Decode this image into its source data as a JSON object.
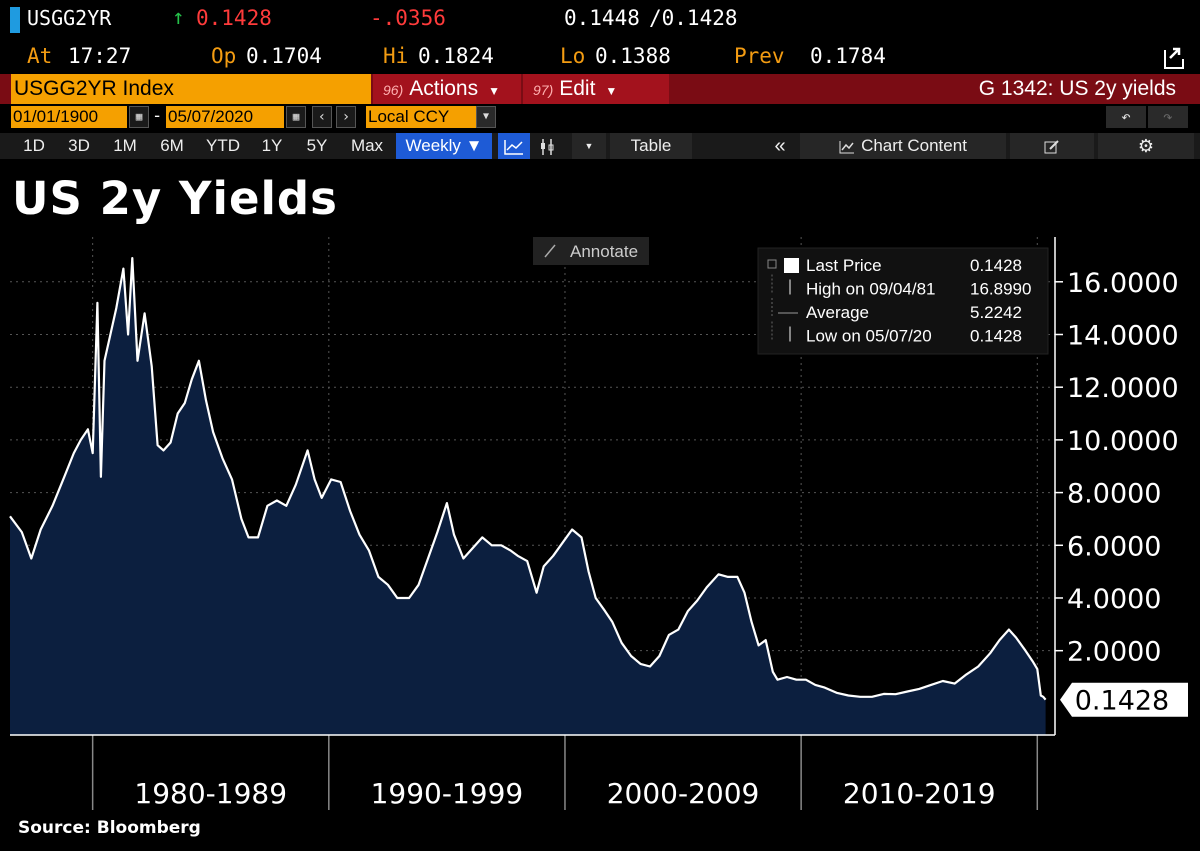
{
  "quote": {
    "ticker": "USGG2YR",
    "last": "0.1428",
    "change": "-.0356",
    "bid_ask_bid": "0.1448",
    "bid_ask_ask": "/0.1428",
    "at_label": "At",
    "at_time": "17:27",
    "op_label": "Op",
    "op_value": "0.1704",
    "hi_label": "Hi",
    "hi_value": "0.1824",
    "lo_label": "Lo",
    "lo_value": "0.1388",
    "prev_label": "Prev",
    "prev_value": "0.1784",
    "colors": {
      "up": "#25c24a",
      "last": "#ff3b3b",
      "label": "#f39c12"
    }
  },
  "tabs": {
    "security": "USGG2YR Index",
    "actions_num": "96)",
    "actions": "Actions",
    "edit_num": "97)",
    "edit": "Edit",
    "graph_title": "G 1342: US 2y yields"
  },
  "dates": {
    "start": "01/01/1900",
    "end": "05/07/2020",
    "currency": "Local CCY",
    "separator": "-"
  },
  "toolbar": {
    "periods": [
      "1D",
      "3D",
      "1M",
      "6M",
      "YTD",
      "1Y",
      "5Y",
      "Max"
    ],
    "frequency": "Weekly",
    "table": "Table",
    "chart_content": "Chart Content"
  },
  "annotate": "Annotate",
  "source": "Source: Bloomberg",
  "chart_data": {
    "type": "area",
    "title": "US 2y Yields",
    "xlabel": "",
    "ylabel": "",
    "x_range": [
      1976.5,
      2020.75
    ],
    "ylim": [
      -1.2,
      17.7
    ],
    "y_ticks": [
      "2.0000",
      "4.0000",
      "6.0000",
      "8.0000",
      "10.0000",
      "12.0000",
      "14.0000",
      "16.0000"
    ],
    "y_tick_values": [
      2,
      4,
      6,
      8,
      10,
      12,
      14,
      16
    ],
    "x_ticks": [
      "1980-1989",
      "1990-1999",
      "2000-2009",
      "2010-2019"
    ],
    "x_tick_ranges": [
      [
        1980,
        1990
      ],
      [
        1990,
        2000
      ],
      [
        2000,
        2010
      ],
      [
        2010,
        2020
      ]
    ],
    "grid": true,
    "last_value_label": "0.1428",
    "colors": {
      "line": "#ffffff",
      "fill": "#0c1f3f",
      "grid": "#555555"
    },
    "legend": {
      "position": "top-right",
      "entries": [
        {
          "name": "Last Price",
          "value": "0.1428"
        },
        {
          "name": "High on 09/04/81",
          "value": "16.8990"
        },
        {
          "name": "Average",
          "value": "5.2242"
        },
        {
          "name": "Low on 05/07/20",
          "value": "0.1428"
        }
      ]
    },
    "series": [
      {
        "name": "Last Price",
        "x": [
          1976.5,
          1977.0,
          1977.4,
          1977.8,
          1978.3,
          1978.8,
          1979.2,
          1979.5,
          1979.8,
          1980.0,
          1980.2,
          1980.35,
          1980.5,
          1980.75,
          1981.0,
          1981.3,
          1981.5,
          1981.68,
          1981.9,
          1982.2,
          1982.5,
          1982.75,
          1983.0,
          1983.3,
          1983.6,
          1983.9,
          1984.2,
          1984.5,
          1984.8,
          1985.1,
          1985.5,
          1985.9,
          1986.3,
          1986.6,
          1987.0,
          1987.4,
          1987.8,
          1988.2,
          1988.6,
          1989.1,
          1989.4,
          1989.7,
          1990.1,
          1990.5,
          1990.9,
          1991.3,
          1991.7,
          1992.1,
          1992.5,
          1992.9,
          1993.4,
          1993.8,
          1994.2,
          1994.6,
          1995.0,
          1995.3,
          1995.7,
          1996.1,
          1996.5,
          1996.9,
          1997.3,
          1997.7,
          1998.0,
          1998.4,
          1998.8,
          1999.1,
          1999.5,
          1999.9,
          2000.3,
          2000.7,
          2001.0,
          2001.3,
          2001.7,
          2002.0,
          2002.4,
          2002.8,
          2003.2,
          2003.6,
          2004.0,
          2004.4,
          2004.8,
          2005.2,
          2005.6,
          2006.0,
          2006.5,
          2006.9,
          2007.3,
          2007.6,
          2007.9,
          2008.2,
          2008.5,
          2008.8,
          2009.0,
          2009.4,
          2009.8,
          2010.2,
          2010.6,
          2011.0,
          2011.5,
          2012.0,
          2012.5,
          2013.0,
          2013.5,
          2014.0,
          2014.5,
          2015.0,
          2015.5,
          2016.0,
          2016.5,
          2017.0,
          2017.5,
          2018.0,
          2018.4,
          2018.8,
          2019.1,
          2019.5,
          2019.8,
          2020.0,
          2020.15,
          2020.25,
          2020.35
        ],
        "values": [
          7.1,
          6.5,
          5.5,
          6.6,
          7.5,
          8.6,
          9.5,
          10.0,
          10.4,
          9.5,
          15.2,
          8.6,
          13.0,
          14.0,
          15.0,
          16.5,
          14.0,
          16.9,
          13.0,
          14.8,
          12.8,
          9.8,
          9.6,
          9.9,
          11.0,
          11.4,
          12.3,
          13.0,
          11.5,
          10.3,
          9.3,
          8.5,
          7.0,
          6.3,
          6.3,
          7.5,
          7.7,
          7.5,
          8.3,
          9.6,
          8.5,
          7.8,
          8.5,
          8.4,
          7.3,
          6.4,
          5.8,
          4.8,
          4.5,
          4.0,
          4.0,
          4.5,
          5.5,
          6.5,
          7.6,
          6.4,
          5.5,
          5.9,
          6.3,
          6.0,
          6.0,
          5.8,
          5.6,
          5.4,
          4.2,
          5.2,
          5.6,
          6.1,
          6.6,
          6.3,
          5.0,
          4.0,
          3.5,
          3.1,
          2.3,
          1.8,
          1.5,
          1.4,
          1.8,
          2.6,
          2.8,
          3.5,
          3.9,
          4.4,
          4.9,
          4.8,
          4.8,
          4.2,
          3.1,
          2.2,
          2.4,
          1.2,
          0.9,
          1.0,
          0.9,
          0.9,
          0.7,
          0.6,
          0.4,
          0.3,
          0.25,
          0.25,
          0.36,
          0.35,
          0.45,
          0.55,
          0.7,
          0.85,
          0.75,
          1.1,
          1.4,
          1.9,
          2.4,
          2.8,
          2.5,
          2.0,
          1.6,
          1.3,
          0.3,
          0.25,
          0.14
        ]
      }
    ]
  }
}
